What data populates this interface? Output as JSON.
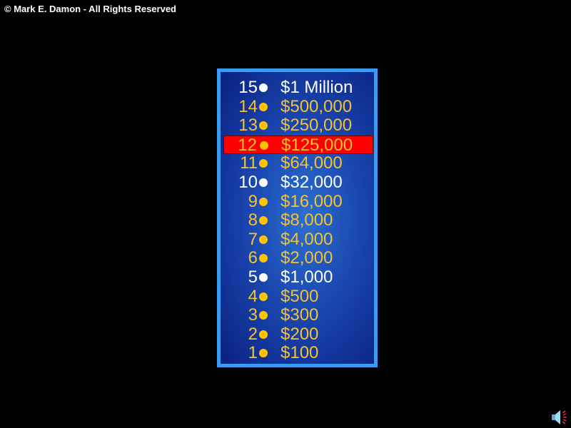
{
  "copyright": "© Mark E. Damon - All Rights Reserved",
  "current_level": 12,
  "levels": [
    {
      "num": "15",
      "amount": "$1 Million",
      "milestone": true
    },
    {
      "num": "14",
      "amount": "$500,000",
      "milestone": false
    },
    {
      "num": "13",
      "amount": "$250,000",
      "milestone": false
    },
    {
      "num": "12",
      "amount": "$125,000",
      "milestone": false
    },
    {
      "num": "11",
      "amount": "$64,000",
      "milestone": false
    },
    {
      "num": "10",
      "amount": "$32,000",
      "milestone": true
    },
    {
      "num": "9",
      "amount": "$16,000",
      "milestone": false
    },
    {
      "num": "8",
      "amount": "$8,000",
      "milestone": false
    },
    {
      "num": "7",
      "amount": "$4,000",
      "milestone": false
    },
    {
      "num": "6",
      "amount": "$2,000",
      "milestone": false
    },
    {
      "num": "5",
      "amount": "$1,000",
      "milestone": true
    },
    {
      "num": "4",
      "amount": "$500",
      "milestone": false
    },
    {
      "num": "3",
      "amount": "$300",
      "milestone": false
    },
    {
      "num": "2",
      "amount": "$200",
      "milestone": false
    },
    {
      "num": "1",
      "amount": "$100",
      "milestone": false
    }
  ],
  "colors": {
    "gold": "#f5c232",
    "highlight": "#ff0000",
    "border": "#3a9cf0"
  },
  "icons": {
    "sound": "speaker-icon"
  }
}
